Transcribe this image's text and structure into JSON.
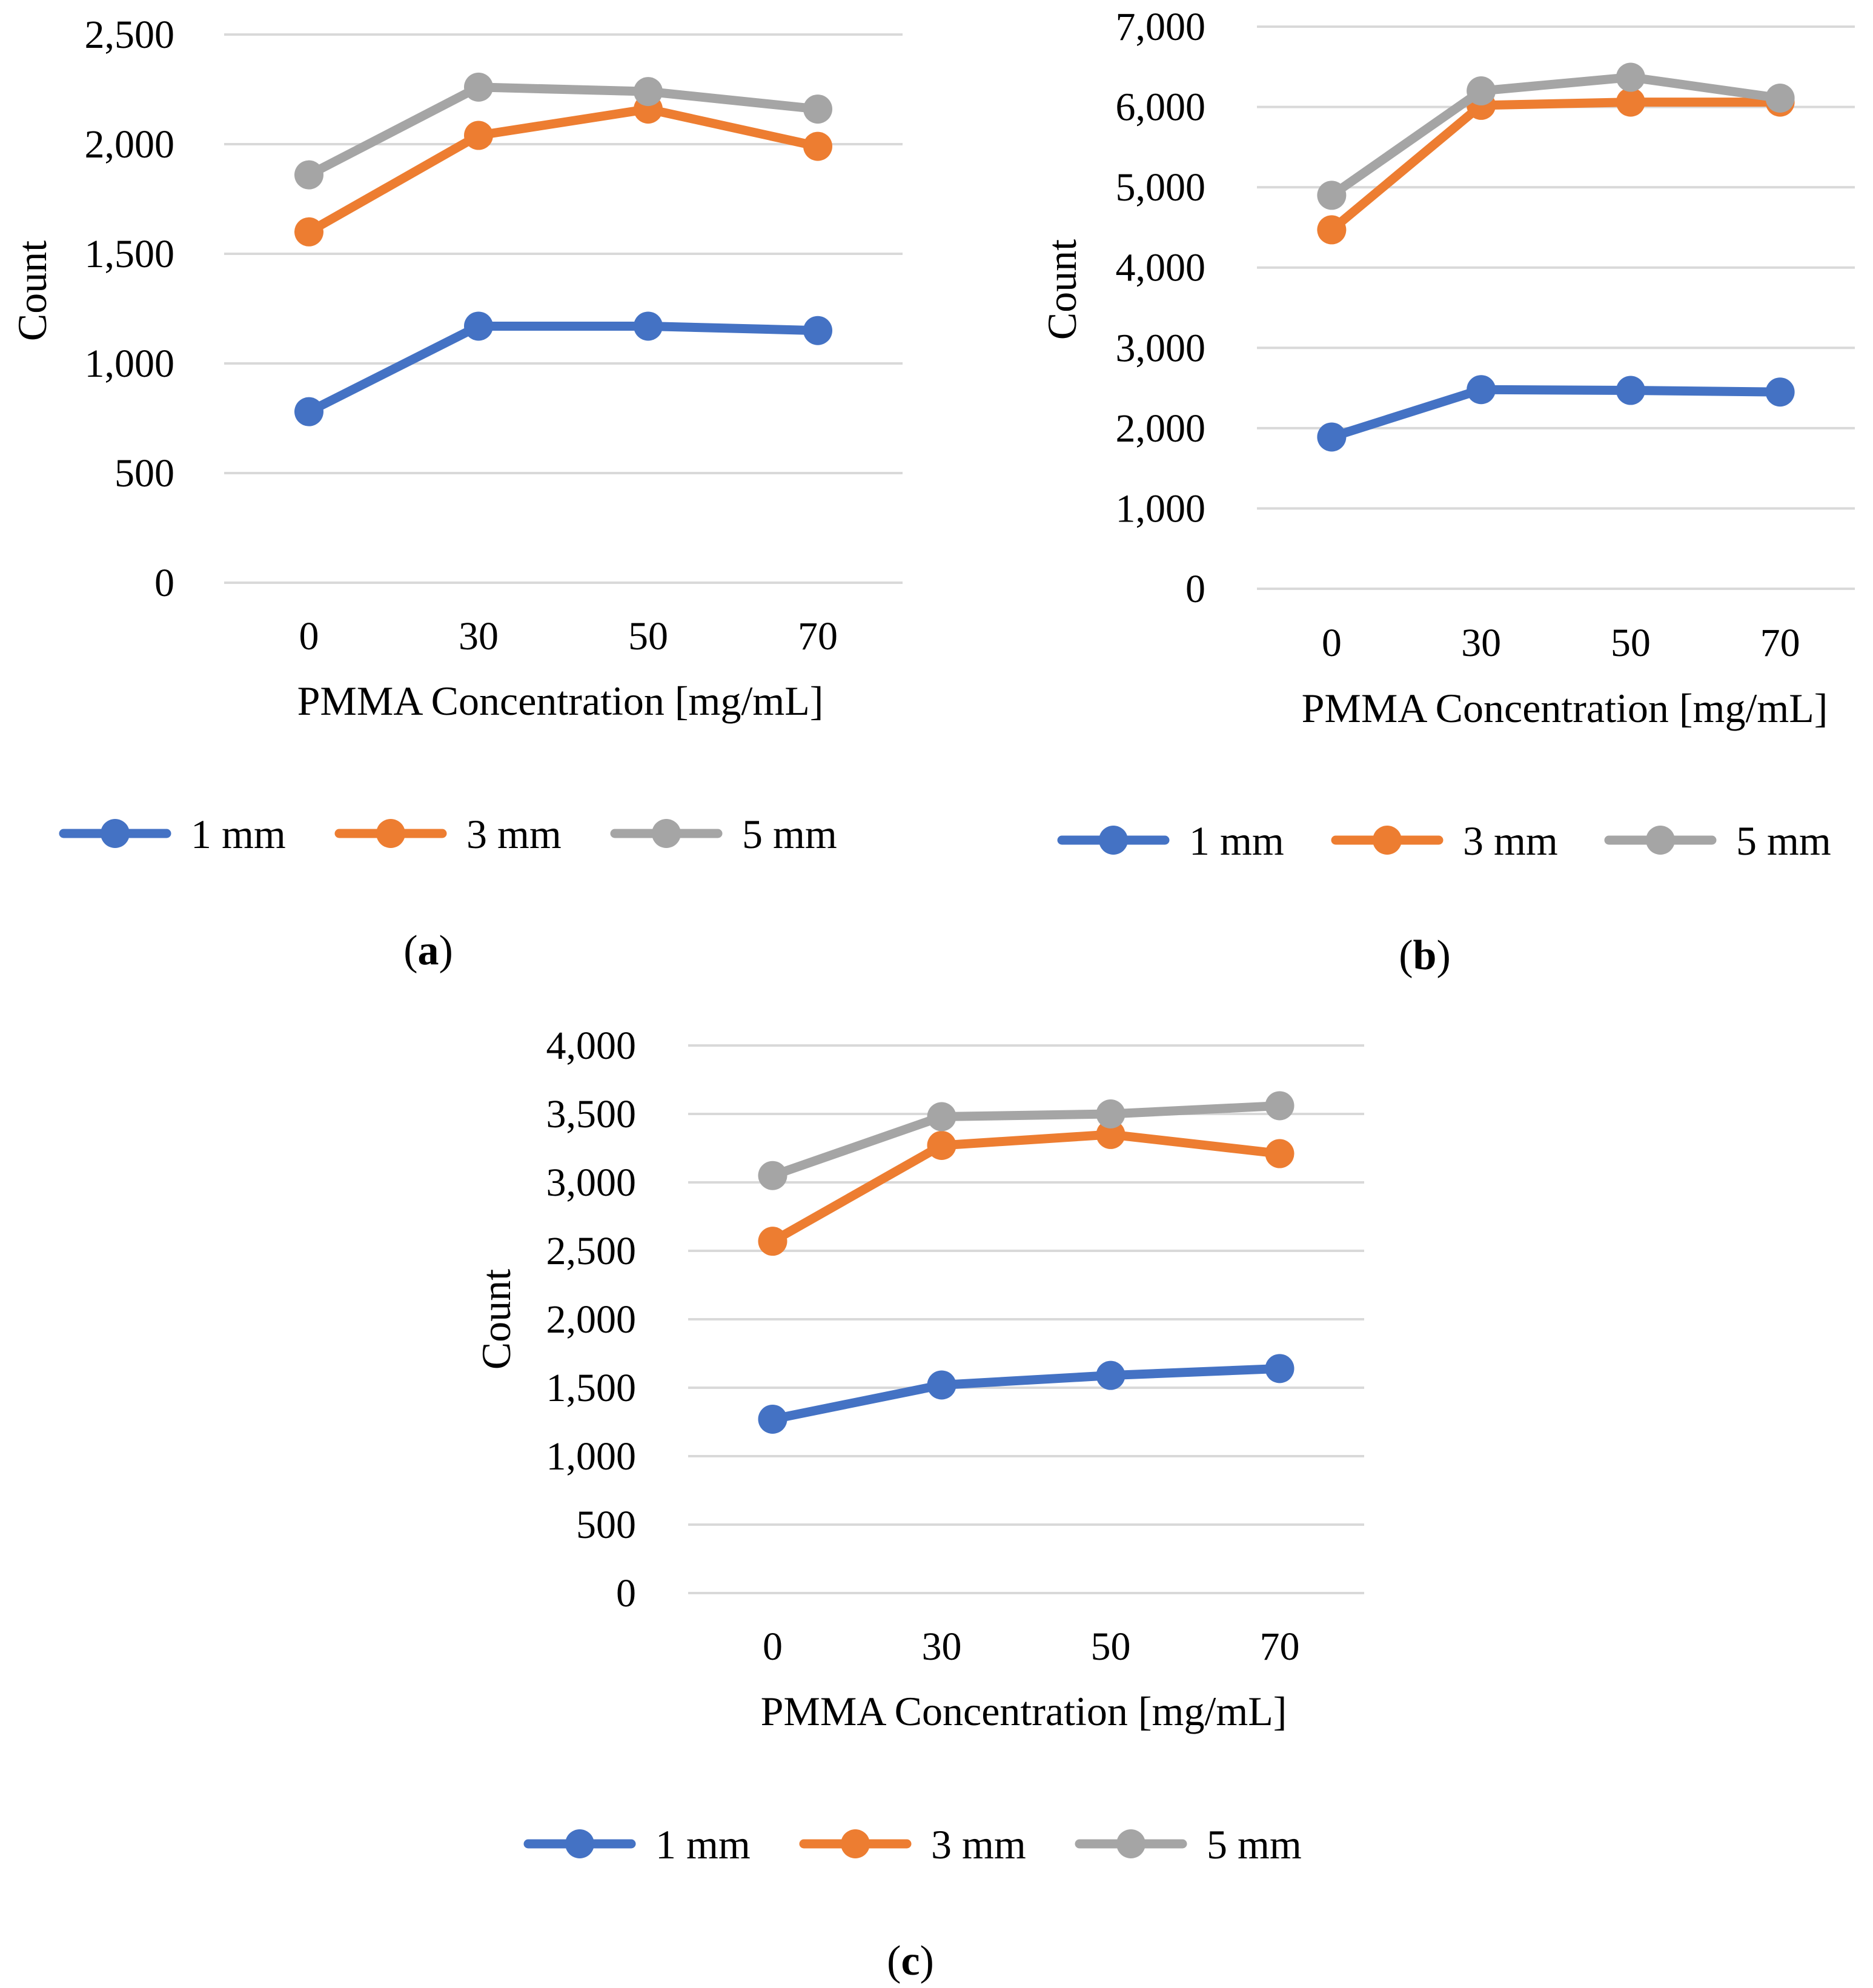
{
  "colors": {
    "series_1mm": "#4472c4",
    "series_3mm": "#ed7d31",
    "series_5mm": "#a5a5a5",
    "gridline": "#d9d9d9",
    "text": "#000000"
  },
  "chart_data": [
    {
      "panel": "a",
      "panel_label_parts": [
        "(",
        "a",
        ")"
      ],
      "type": "line",
      "title": "",
      "xlabel": "PMMA Concentration [mg/mL]",
      "ylabel": "Count",
      "categories": [
        "0",
        "30",
        "50",
        "70"
      ],
      "yticks": [
        "0",
        "500",
        "1,000",
        "1,500",
        "2,000",
        "2,500"
      ],
      "ylim": [
        0,
        2500
      ],
      "grid": true,
      "legend_position": "bottom",
      "series": [
        {
          "name": "1 mm",
          "color": "#4472c4",
          "values": [
            780,
            1170,
            1170,
            1150
          ]
        },
        {
          "name": "3 mm",
          "color": "#ed7d31",
          "values": [
            1600,
            2040,
            2160,
            1990
          ]
        },
        {
          "name": "5 mm",
          "color": "#a5a5a5",
          "values": [
            1860,
            2260,
            2240,
            2160
          ]
        }
      ]
    },
    {
      "panel": "b",
      "panel_label_parts": [
        "(",
        "b",
        ")"
      ],
      "type": "line",
      "title": "",
      "xlabel": "PMMA Concentration [mg/mL]",
      "ylabel": "Count",
      "categories": [
        "0",
        "30",
        "50",
        "70"
      ],
      "yticks": [
        "0",
        "1,000",
        "2,000",
        "3,000",
        "4,000",
        "5,000",
        "6,000",
        "7,000"
      ],
      "ylim": [
        0,
        7000
      ],
      "grid": true,
      "legend_position": "bottom",
      "series": [
        {
          "name": "1 mm",
          "color": "#4472c4",
          "values": [
            1890,
            2480,
            2470,
            2450
          ]
        },
        {
          "name": "3 mm",
          "color": "#ed7d31",
          "values": [
            4470,
            6020,
            6060,
            6060
          ]
        },
        {
          "name": "5 mm",
          "color": "#a5a5a5",
          "values": [
            4900,
            6200,
            6370,
            6110
          ]
        }
      ]
    },
    {
      "panel": "c",
      "panel_label_parts": [
        "(",
        "c",
        ")"
      ],
      "type": "line",
      "title": "",
      "xlabel": "PMMA Concentration [mg/mL]",
      "ylabel": "Count",
      "categories": [
        "0",
        "30",
        "50",
        "70"
      ],
      "yticks": [
        "0",
        "500",
        "1,000",
        "1,500",
        "2,000",
        "2,500",
        "3,000",
        "3,500",
        "4,000"
      ],
      "ylim": [
        0,
        4000
      ],
      "grid": true,
      "legend_position": "bottom",
      "series": [
        {
          "name": "1 mm",
          "color": "#4472c4",
          "values": [
            1270,
            1520,
            1590,
            1640
          ]
        },
        {
          "name": "3 mm",
          "color": "#ed7d31",
          "values": [
            2570,
            3270,
            3350,
            3210
          ]
        },
        {
          "name": "5 mm",
          "color": "#a5a5a5",
          "values": [
            3050,
            3480,
            3500,
            3560
          ]
        }
      ]
    }
  ]
}
